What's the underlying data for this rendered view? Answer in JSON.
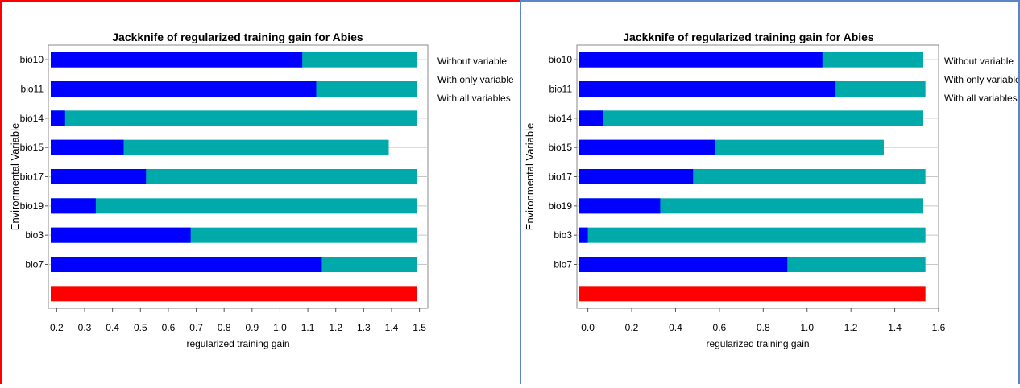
{
  "colors": {
    "without": "#00aaaa",
    "only": "#0000ff",
    "all": "#ff0000",
    "left_border": "#ff0000",
    "right_border": "#5b86c8"
  },
  "legend": {
    "without": "Without variable",
    "only": "With only variable",
    "all": "With all variables"
  },
  "chart_data": [
    {
      "type": "bar",
      "orientation": "horizontal",
      "title": "Jackknife of regularized training gain for Abies",
      "xlabel": "regularized training gain",
      "ylabel": "Environmental Variable",
      "xlim": [
        0.17,
        1.53
      ],
      "xticks": [
        0.2,
        0.3,
        0.4,
        0.5,
        0.6,
        0.7,
        0.8,
        0.9,
        1.0,
        1.1,
        1.2,
        1.3,
        1.4,
        1.5
      ],
      "xtick_labels": [
        "0.2",
        "0.3",
        "0.4",
        "0.5",
        "0.6",
        "0.7",
        "0.8",
        "0.9",
        "1.0",
        "1.1",
        "1.2",
        "1.3",
        "1.4",
        "1.5"
      ],
      "categories": [
        "bio10",
        "bio11",
        "bio14",
        "bio15",
        "bio17",
        "bio19",
        "bio3",
        "bio7"
      ],
      "series": [
        {
          "name": "Without variable",
          "values": [
            1.49,
            1.49,
            1.49,
            1.39,
            1.49,
            1.49,
            1.49,
            1.49
          ]
        },
        {
          "name": "With only variable",
          "values": [
            1.08,
            1.13,
            0.23,
            0.44,
            0.52,
            0.34,
            0.68,
            1.15
          ]
        }
      ],
      "all_variables": 1.49,
      "legend_position": "right"
    },
    {
      "type": "bar",
      "orientation": "horizontal",
      "title": "Jackknife of regularized training gain for Abies",
      "xlabel": "regularized training gain",
      "ylabel": "Environmental Variable",
      "xlim": [
        -0.05,
        1.6
      ],
      "xticks": [
        0.0,
        0.2,
        0.4,
        0.6,
        0.8,
        1.0,
        1.2,
        1.4,
        1.6
      ],
      "xtick_labels": [
        "0.0",
        "0.2",
        "0.4",
        "0.6",
        "0.8",
        "1.0",
        "1.2",
        "1.4",
        "1.6"
      ],
      "categories": [
        "bio10",
        "bio11",
        "bio14",
        "bio15",
        "bio17",
        "bio19",
        "bio3",
        "bio7"
      ],
      "series": [
        {
          "name": "Without variable",
          "values": [
            1.53,
            1.54,
            1.53,
            1.35,
            1.54,
            1.53,
            1.54,
            1.54
          ]
        },
        {
          "name": "With only variable",
          "values": [
            1.07,
            1.13,
            0.07,
            0.58,
            0.48,
            0.33,
            0.0,
            0.91
          ]
        }
      ],
      "all_variables": 1.54,
      "legend_position": "right"
    }
  ]
}
